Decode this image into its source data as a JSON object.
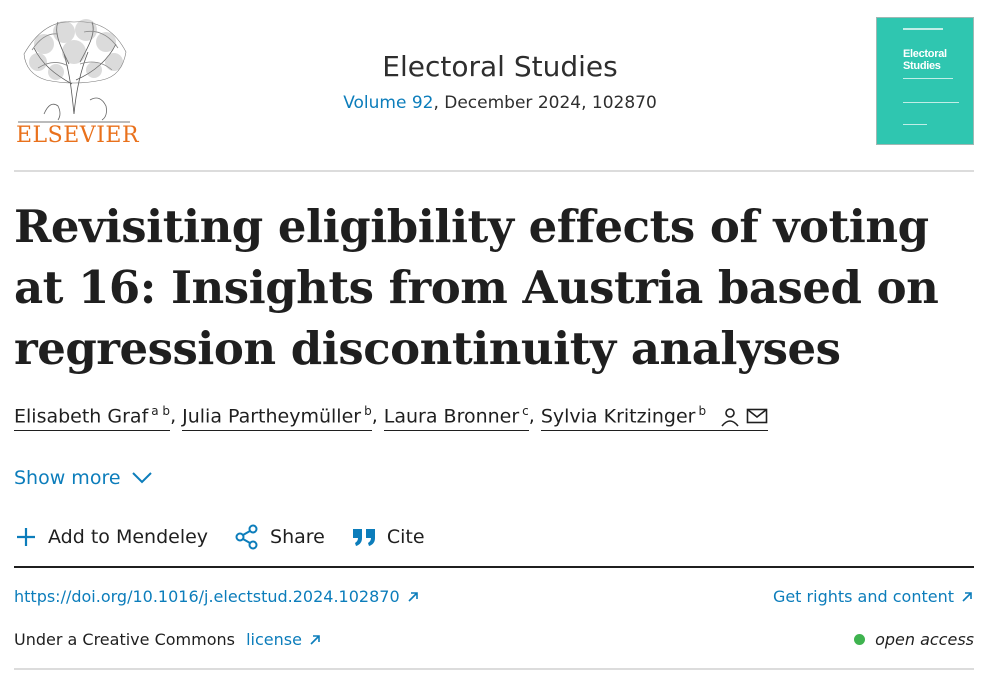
{
  "publisher": {
    "name": "ELSEVIER",
    "logo_icon": "elsevier-tree-icon"
  },
  "journal": {
    "title": "Electoral Studies",
    "volume": "Volume 92",
    "issue_details": ", December 2024, 102870",
    "cover": {
      "title_line1": "Electoral",
      "title_line2": "Studies",
      "color": "#2fc6b0"
    }
  },
  "article": {
    "title": "Revisiting eligibility effects of voting at 16: Insights from Austria based on regression discontinuity analyses"
  },
  "authors": [
    {
      "name": "Elisabeth Graf",
      "affil": "a b"
    },
    {
      "name": "Julia Partheymüller",
      "affil": "b"
    },
    {
      "name": "Laura Bronner",
      "affil": "c"
    },
    {
      "name": "Sylvia Kritzinger",
      "affil": "b"
    }
  ],
  "author_separator": ",",
  "author_icons": [
    "person-icon",
    "mail-icon"
  ],
  "show_more": {
    "label": "Show more",
    "icon": "chevron-down-icon"
  },
  "actions": [
    {
      "label": "Add to Mendeley",
      "icon": "plus-icon"
    },
    {
      "label": "Share",
      "icon": "share-icon"
    },
    {
      "label": "Cite",
      "icon": "quote-icon"
    }
  ],
  "doi": {
    "url": "https://doi.org/10.1016/j.electstud.2024.102870"
  },
  "rights": {
    "label": "Get rights and content"
  },
  "license": {
    "prefix": "Under a Creative Commons ",
    "link": "license"
  },
  "access": {
    "label": "open access",
    "color": "#3fb34f"
  },
  "colors": {
    "link": "#0c7dbb",
    "publisher_orange": "#e9711c"
  }
}
